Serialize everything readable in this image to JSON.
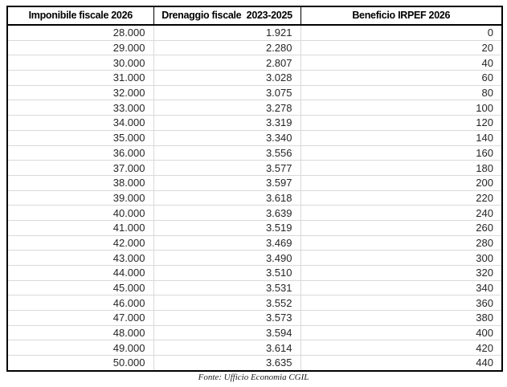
{
  "table": {
    "headers": [
      "Imponibile fiscale 2026",
      "Drenaggio fiscale  2023-2025",
      "Beneficio IRPEF 2026"
    ],
    "rows": [
      [
        "28.000",
        "1.921",
        "0"
      ],
      [
        "29.000",
        "2.280",
        "20"
      ],
      [
        "30.000",
        "2.807",
        "40"
      ],
      [
        "31.000",
        "3.028",
        "60"
      ],
      [
        "32.000",
        "3.075",
        "80"
      ],
      [
        "33.000",
        "3.278",
        "100"
      ],
      [
        "34.000",
        "3.319",
        "120"
      ],
      [
        "35.000",
        "3.340",
        "140"
      ],
      [
        "36.000",
        "3.556",
        "160"
      ],
      [
        "37.000",
        "3.577",
        "180"
      ],
      [
        "38.000",
        "3.597",
        "200"
      ],
      [
        "39.000",
        "3.618",
        "220"
      ],
      [
        "40.000",
        "3.639",
        "240"
      ],
      [
        "41.000",
        "3.519",
        "260"
      ],
      [
        "42.000",
        "3.469",
        "280"
      ],
      [
        "43.000",
        "3.490",
        "300"
      ],
      [
        "44.000",
        "3.510",
        "320"
      ],
      [
        "45.000",
        "3.531",
        "340"
      ],
      [
        "46.000",
        "3.552",
        "360"
      ],
      [
        "47.000",
        "3.573",
        "380"
      ],
      [
        "48.000",
        "3.594",
        "400"
      ],
      [
        "49.000",
        "3.614",
        "420"
      ],
      [
        "50.000",
        "3.635",
        "440"
      ]
    ]
  },
  "footer": {
    "source": "Fonte: Ufficio Economia CGIL"
  },
  "colors": {
    "border": "#000000",
    "gridline": "#d9d9d9",
    "text": "#262626"
  }
}
